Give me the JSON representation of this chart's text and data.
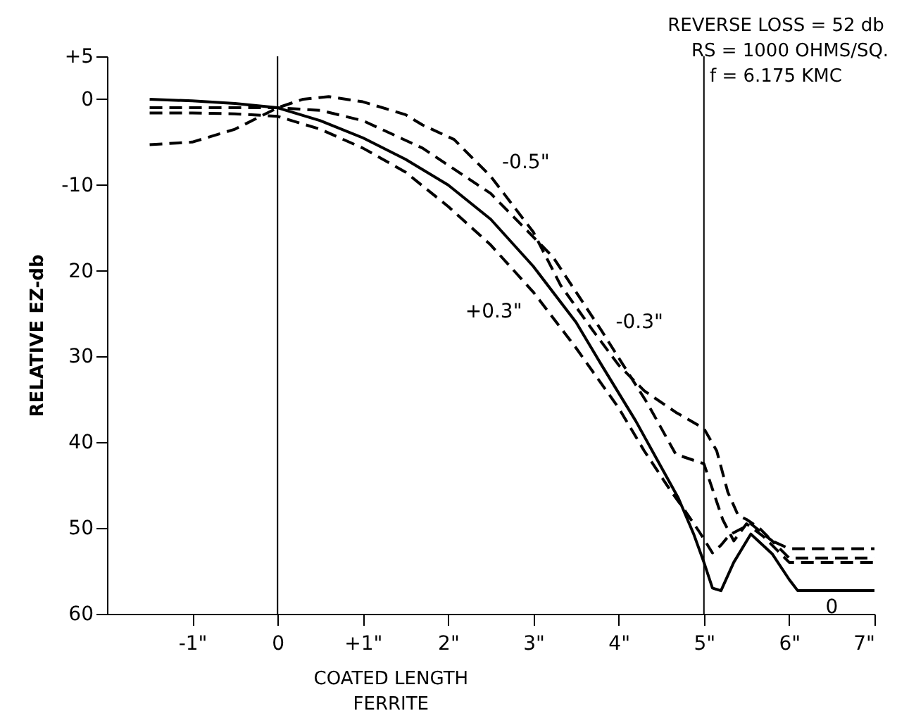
{
  "chart_data": {
    "type": "line",
    "ylabel": "RELATIVE EZ-db",
    "xlim": [
      -2,
      7
    ],
    "ylim": [
      -60,
      5
    ],
    "xticks": [
      {
        "value": -1,
        "label": "-1\""
      },
      0,
      {
        "value": 1,
        "label": "+1\""
      },
      {
        "value": 2,
        "label": "2\""
      },
      {
        "value": 3,
        "label": "3\""
      },
      {
        "value": 4,
        "label": "4\""
      },
      {
        "value": 5,
        "label": "5\""
      },
      {
        "value": 6,
        "label": "6\""
      },
      {
        "value": 7,
        "label": "7\""
      }
    ],
    "yticks": [
      {
        "value": 5,
        "label": "+5"
      },
      0,
      -10,
      {
        "value": -20,
        "label": "20"
      },
      {
        "value": -30,
        "label": "30"
      },
      {
        "value": -40,
        "label": "40"
      },
      {
        "value": -50,
        "label": "50"
      },
      {
        "value": -60,
        "label": "60"
      }
    ],
    "grid": false,
    "marker": "none",
    "series": [
      {
        "name": "-0.5\"",
        "color": "#000000",
        "line_style": "dashed",
        "x": [
          -1.5,
          -1,
          -0.5,
          0,
          0.3,
          0.6,
          1,
          1.5,
          1.7,
          2.07,
          2.5,
          3,
          3.32,
          3.7,
          4,
          4.3,
          4.67,
          5,
          5.15,
          5.28,
          5.4,
          5.5,
          5.65,
          5.8,
          6,
          6.5,
          7
        ],
        "values": [
          -5.3,
          -5,
          -3.5,
          -1,
          0,
          0.3,
          -0.3,
          -1.8,
          -3,
          -4.7,
          -9,
          -15.5,
          -21.7,
          -27,
          -31,
          -34,
          -36.5,
          -38.4,
          -41,
          -45.8,
          -48.5,
          -49,
          -50,
          -51.5,
          -52.4,
          -52.4,
          -52.4
        ]
      },
      {
        "name": "-0.3\"",
        "color": "#000000",
        "line_style": "dashed",
        "x": [
          -1.5,
          -1,
          -0.5,
          0,
          0.5,
          1,
          1.7,
          2.5,
          3.23,
          3.8,
          4.34,
          4.67,
          5,
          5.22,
          5.35,
          5.5,
          5.7,
          6,
          6.5,
          7
        ],
        "values": [
          -1,
          -1,
          -1,
          -1,
          -1.3,
          -2.5,
          -5.7,
          -11,
          -18.4,
          -27,
          -35.5,
          -41.4,
          -42.5,
          -49,
          -51.5,
          -49.5,
          -51,
          -54,
          -54,
          -54
        ]
      },
      {
        "name": "0",
        "color": "#000000",
        "line_style": "solid",
        "x": [
          -1.5,
          -1,
          -0.5,
          0,
          0.5,
          1,
          1.5,
          2,
          2.5,
          3,
          3.5,
          3.8,
          4.2,
          4.45,
          4.7,
          4.88,
          5.0,
          5.1,
          5.2,
          5.35,
          5.55,
          5.8,
          6.0,
          6.1,
          6.5,
          7
        ],
        "values": [
          0,
          -0.2,
          -0.5,
          -1,
          -2.5,
          -4.5,
          -7,
          -10,
          -14,
          -19.5,
          -26,
          -31,
          -37.5,
          -42,
          -46.5,
          -50.7,
          -54,
          -57,
          -57.3,
          -54,
          -50.7,
          -53,
          -56,
          -57.3,
          -57.3,
          -57.3
        ]
      },
      {
        "name": "+0.3\"",
        "color": "#000000",
        "line_style": "dashed",
        "x": [
          -1.5,
          -1,
          -0.5,
          0,
          0.5,
          1,
          1.5,
          2,
          2.5,
          3,
          3.5,
          4,
          4.3,
          4.6,
          4.78,
          4.95,
          5.1,
          5.2,
          5.3,
          5.55,
          5.8,
          6,
          6.5,
          7
        ],
        "values": [
          -1.6,
          -1.6,
          -1.7,
          -2,
          -3.5,
          -5.7,
          -8.5,
          -12.5,
          -17,
          -22.5,
          -29,
          -36,
          -41,
          -45.5,
          -48,
          -50.5,
          -52.9,
          -52,
          -50.8,
          -49.5,
          -51.5,
          -53.5,
          -53.5,
          -53.5
        ]
      }
    ],
    "ref_lines": [
      {
        "axis": "x",
        "value": 0
      },
      {
        "axis": "x",
        "value": 5
      }
    ],
    "annotations": [
      "REVERSE LOSS = 52 db",
      "RS = 1000 OHMS/SQ.",
      "f = 6.175 KMC",
      "COATED LENGTH",
      "FERRITE"
    ]
  }
}
